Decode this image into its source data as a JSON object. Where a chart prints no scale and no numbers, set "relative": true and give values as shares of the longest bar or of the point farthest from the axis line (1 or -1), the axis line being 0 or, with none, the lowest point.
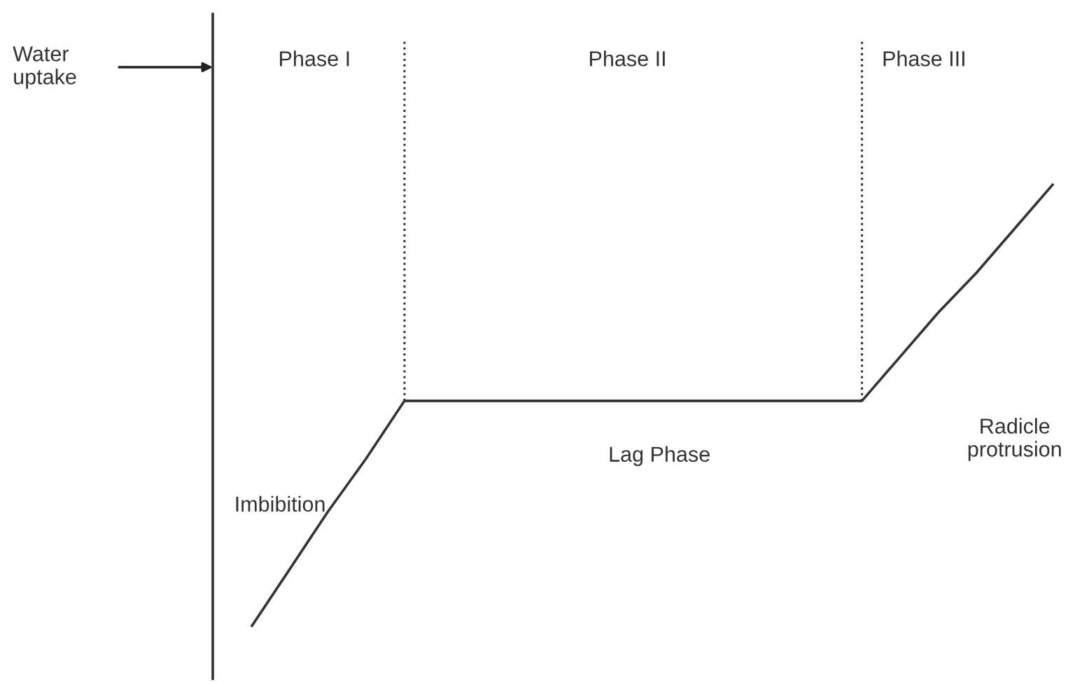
{
  "chart_data": {
    "type": "line",
    "relative": true,
    "categories": [
      null,
      null,
      null,
      null,
      null,
      null,
      null,
      null,
      null,
      null,
      null,
      null,
      null,
      null,
      null,
      null,
      null,
      null,
      null,
      null,
      null,
      null
    ],
    "series": [
      {
        "color": "#333333",
        "values": [
          0,
          0.13,
          0.26,
          0.38,
          0.51,
          0.51,
          0.51,
          0.51,
          0.51,
          0.51,
          0.51,
          0.51,
          0.51,
          0.51,
          0.51,
          0.51,
          0.51,
          0.61,
          0.71,
          0.8,
          0.9,
          1
        ]
      }
    ],
    "annotations": [
      "Water\nuptake",
      "Phase I",
      "Phase II",
      "Phase III",
      "Imbibition",
      "Lag Phase",
      "Radicle\nprotrusion"
    ],
    "line_style": "solid"
  }
}
